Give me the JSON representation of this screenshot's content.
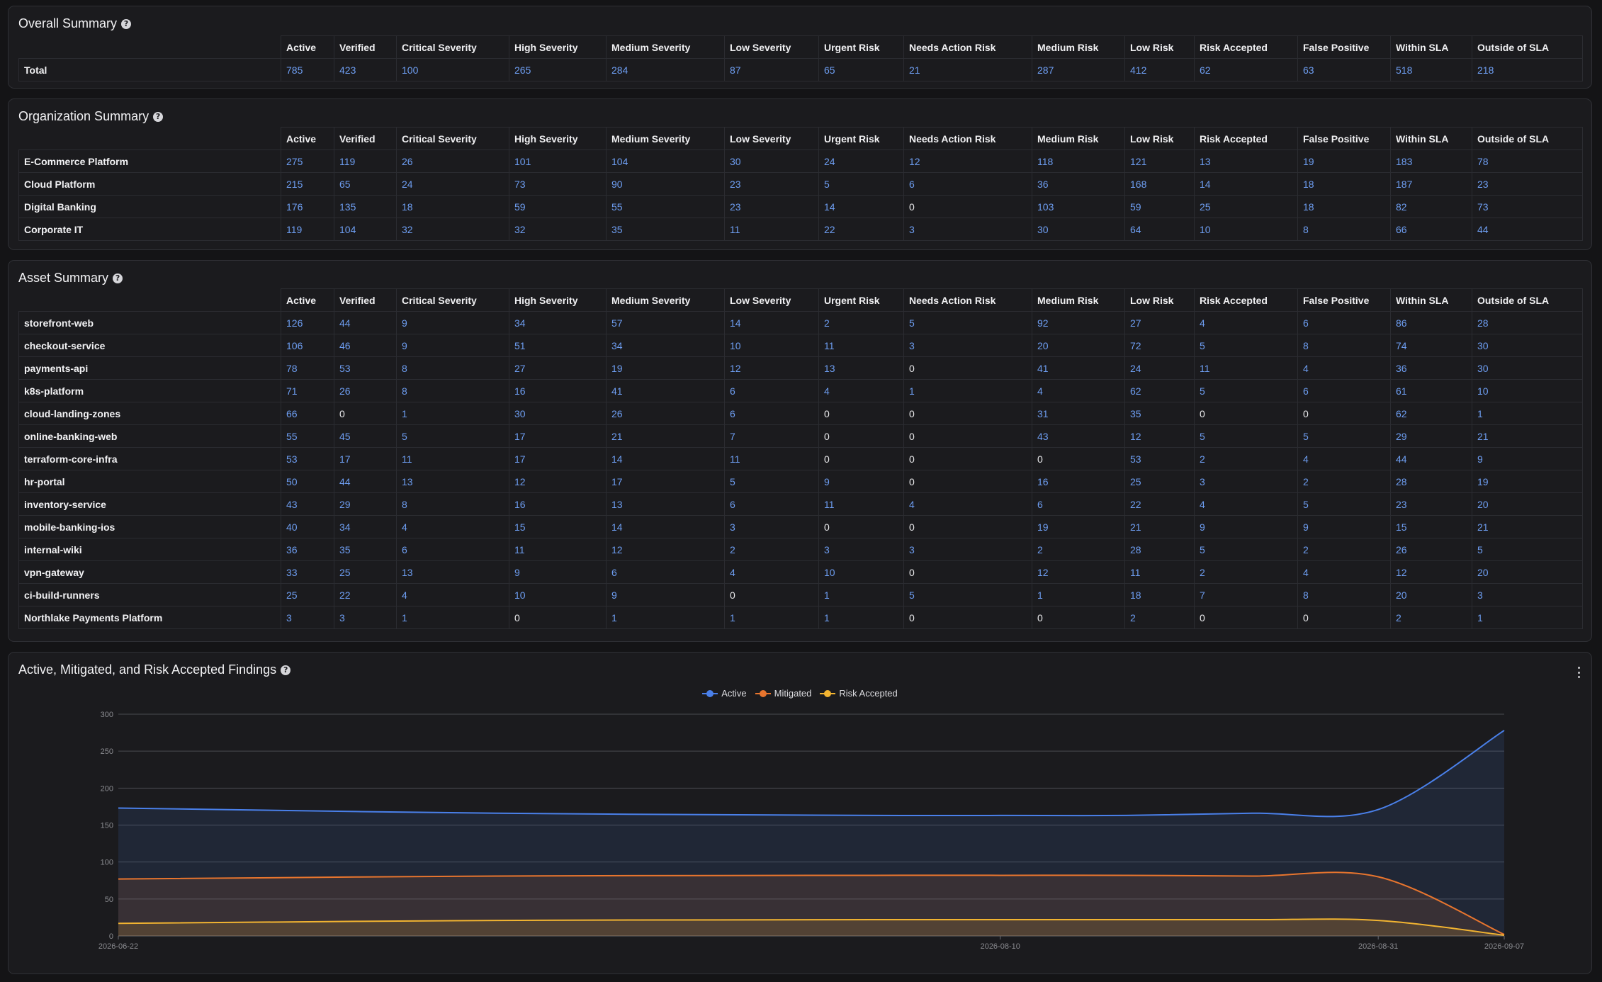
{
  "overall": {
    "title": "Overall Summary",
    "rows": [
      {
        "label": "Total",
        "values": [
          "785",
          "423",
          "100",
          "265",
          "284",
          "87",
          "65",
          "21",
          "287",
          "412",
          "62",
          "63",
          "518",
          "218"
        ]
      }
    ]
  },
  "organization": {
    "title": "Organization Summary",
    "rows": [
      {
        "label": "E-Commerce Platform",
        "values": [
          "275",
          "119",
          "26",
          "101",
          "104",
          "30",
          "24",
          "12",
          "118",
          "121",
          "13",
          "19",
          "183",
          "78"
        ]
      },
      {
        "label": "Cloud Platform",
        "values": [
          "215",
          "65",
          "24",
          "73",
          "90",
          "23",
          "5",
          "6",
          "36",
          "168",
          "14",
          "18",
          "187",
          "23"
        ]
      },
      {
        "label": "Digital Banking",
        "values": [
          "176",
          "135",
          "18",
          "59",
          "55",
          "23",
          "14",
          "0",
          "103",
          "59",
          "25",
          "18",
          "82",
          "73"
        ]
      },
      {
        "label": "Corporate IT",
        "values": [
          "119",
          "104",
          "32",
          "32",
          "35",
          "11",
          "22",
          "3",
          "30",
          "64",
          "10",
          "8",
          "66",
          "44"
        ]
      }
    ]
  },
  "asset": {
    "title": "Asset Summary",
    "rows": [
      {
        "label": "storefront-web",
        "values": [
          "126",
          "44",
          "9",
          "34",
          "57",
          "14",
          "2",
          "5",
          "92",
          "27",
          "4",
          "6",
          "86",
          "28"
        ]
      },
      {
        "label": "checkout-service",
        "values": [
          "106",
          "46",
          "9",
          "51",
          "34",
          "10",
          "11",
          "3",
          "20",
          "72",
          "5",
          "8",
          "74",
          "30"
        ]
      },
      {
        "label": "payments-api",
        "values": [
          "78",
          "53",
          "8",
          "27",
          "19",
          "12",
          "13",
          "0",
          "41",
          "24",
          "11",
          "4",
          "36",
          "30"
        ]
      },
      {
        "label": "k8s-platform",
        "values": [
          "71",
          "26",
          "8",
          "16",
          "41",
          "6",
          "4",
          "1",
          "4",
          "62",
          "5",
          "6",
          "61",
          "10"
        ]
      },
      {
        "label": "cloud-landing-zones",
        "values": [
          "66",
          "0",
          "1",
          "30",
          "26",
          "6",
          "0",
          "0",
          "31",
          "35",
          "0",
          "0",
          "62",
          "1"
        ]
      },
      {
        "label": "online-banking-web",
        "values": [
          "55",
          "45",
          "5",
          "17",
          "21",
          "7",
          "0",
          "0",
          "43",
          "12",
          "5",
          "5",
          "29",
          "21"
        ]
      },
      {
        "label": "terraform-core-infra",
        "values": [
          "53",
          "17",
          "11",
          "17",
          "14",
          "11",
          "0",
          "0",
          "0",
          "53",
          "2",
          "4",
          "44",
          "9"
        ]
      },
      {
        "label": "hr-portal",
        "values": [
          "50",
          "44",
          "13",
          "12",
          "17",
          "5",
          "9",
          "0",
          "16",
          "25",
          "3",
          "2",
          "28",
          "19"
        ]
      },
      {
        "label": "inventory-service",
        "values": [
          "43",
          "29",
          "8",
          "16",
          "13",
          "6",
          "11",
          "4",
          "6",
          "22",
          "4",
          "5",
          "23",
          "20"
        ]
      },
      {
        "label": "mobile-banking-ios",
        "values": [
          "40",
          "34",
          "4",
          "15",
          "14",
          "3",
          "0",
          "0",
          "19",
          "21",
          "9",
          "9",
          "15",
          "21"
        ]
      },
      {
        "label": "internal-wiki",
        "values": [
          "36",
          "35",
          "6",
          "11",
          "12",
          "2",
          "3",
          "3",
          "2",
          "28",
          "5",
          "2",
          "26",
          "5"
        ]
      },
      {
        "label": "vpn-gateway",
        "values": [
          "33",
          "25",
          "13",
          "9",
          "6",
          "4",
          "10",
          "0",
          "12",
          "11",
          "2",
          "4",
          "12",
          "20"
        ]
      },
      {
        "label": "ci-build-runners",
        "values": [
          "25",
          "22",
          "4",
          "10",
          "9",
          "0",
          "1",
          "5",
          "1",
          "18",
          "7",
          "8",
          "20",
          "3"
        ]
      },
      {
        "label": "Northlake Payments Platform",
        "values": [
          "3",
          "3",
          "1",
          "0",
          "1",
          "1",
          "1",
          "0",
          "0",
          "2",
          "0",
          "0",
          "2",
          "1"
        ]
      }
    ]
  },
  "columns": [
    "Active",
    "Verified",
    "Critical Severity",
    "High Severity",
    "Medium Severity",
    "Low Severity",
    "Urgent Risk",
    "Needs Action Risk",
    "Medium Risk",
    "Low Risk",
    "Risk Accepted",
    "False Positive",
    "Within SLA",
    "Outside of SLA"
  ],
  "chart_panel": {
    "title": "Active, Mitigated, and Risk Accepted Findings"
  },
  "chart_data": {
    "type": "area",
    "x": [
      "2026-06-22",
      "2026-07-13",
      "2026-08-03",
      "2026-08-10",
      "2026-08-17",
      "2026-08-24",
      "2026-08-31",
      "2026-09-07"
    ],
    "x_tick_labels": [
      "2026-06-22",
      "2026-08-10",
      "2026-08-31",
      "2026-09-07"
    ],
    "y_ticks": [
      "0",
      "50",
      "100",
      "150",
      "200",
      "250",
      "300"
    ],
    "ylim": [
      0,
      300
    ],
    "series": [
      {
        "name": "Active",
        "color": "#4a80ea",
        "values": [
          173,
          166,
          163,
          163,
          163,
          166,
          171,
          278
        ]
      },
      {
        "name": "Mitigated",
        "color": "#e8752e",
        "values": [
          77,
          81,
          82,
          82,
          82,
          81,
          80,
          2
        ]
      },
      {
        "name": "Risk Accepted",
        "color": "#f2b431",
        "values": [
          17,
          21,
          22,
          22,
          22,
          22,
          21,
          1
        ]
      }
    ],
    "grid": true,
    "legend": "top-center"
  }
}
